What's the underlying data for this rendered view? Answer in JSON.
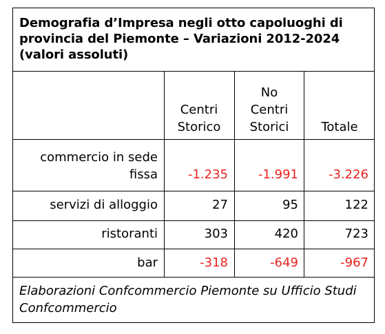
{
  "title": "Demografia d’Impresa negli otto capoluoghi di provincia del Piemonte – Variazioni 2012-2024 (valori assoluti)",
  "columns": {
    "col1": [
      "Centri",
      "Storico"
    ],
    "col2": [
      "No",
      "Centri",
      "Storici"
    ],
    "col3": [
      "Totale"
    ]
  },
  "rows": [
    {
      "label": [
        "commercio in sede",
        "fissa"
      ],
      "values": [
        "-1.235",
        "-1.991",
        "-3.226"
      ],
      "negative": true
    },
    {
      "label": [
        "servizi di alloggio"
      ],
      "values": [
        "27",
        "95",
        "122"
      ],
      "negative": false
    },
    {
      "label": [
        "ristoranti"
      ],
      "values": [
        "303",
        "420",
        "723"
      ],
      "negative": false
    },
    {
      "label": [
        "bar"
      ],
      "values": [
        "-318",
        "-649",
        "-967"
      ],
      "negative": true
    }
  ],
  "footnote": "Elaborazioni Confcommercio Piemonte su Ufficio Studi Confcommercio",
  "colors": {
    "negative": "#e8231f",
    "text": "#000000",
    "border": "#000000"
  }
}
